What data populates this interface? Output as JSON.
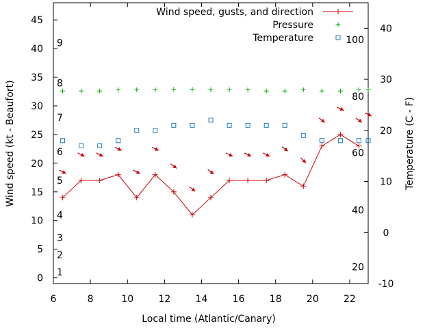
{
  "chart_data": {
    "type": "line",
    "xlabel": "Local time (Atlantic/Canary)",
    "ylabel": "Wind speed (kt - Beaufort)",
    "y2label": "Temperature (C - F)",
    "xlim": [
      6,
      23
    ],
    "ylim": [
      -1,
      48
    ],
    "y2lim": [
      -10,
      45
    ],
    "x_ticks": [
      6,
      8,
      10,
      12,
      14,
      16,
      18,
      20,
      22
    ],
    "y_ticks": [
      0,
      5,
      10,
      15,
      20,
      25,
      30,
      35,
      40,
      45
    ],
    "y2_ticks": [
      -10,
      0,
      10,
      20,
      30,
      40
    ],
    "beaufort_labels": [
      {
        "label": "1",
        "kt": 1
      },
      {
        "label": "2",
        "kt": 4
      },
      {
        "label": "3",
        "kt": 7
      },
      {
        "label": "4",
        "kt": 11
      },
      {
        "label": "5",
        "kt": 17
      },
      {
        "label": "6",
        "kt": 22
      },
      {
        "label": "7",
        "kt": 28
      },
      {
        "label": "8",
        "kt": 34
      },
      {
        "label": "9",
        "kt": 41
      }
    ],
    "fahrenheit_labels": [
      {
        "label": "20",
        "c": -6.7
      },
      {
        "label": "40",
        "c": 4.4
      },
      {
        "label": "60",
        "c": 15.6
      },
      {
        "label": "80",
        "c": 26.7
      },
      {
        "label": "100",
        "c": 37.8
      }
    ],
    "legend_position": "top-right",
    "series": [
      {
        "name": "Wind speed, gusts, and direction",
        "color": "#cc0000",
        "x": [
          6.5,
          7.5,
          8.5,
          9.5,
          10.5,
          11.5,
          12.5,
          13.5,
          14.5,
          15.5,
          16.5,
          17.5,
          18.5,
          19.5,
          20.5,
          21.5,
          22.5
        ],
        "y": [
          14,
          17,
          17,
          18,
          14,
          18,
          15,
          11,
          14,
          17,
          17,
          17,
          18,
          16,
          23,
          25,
          23
        ]
      },
      {
        "name": "Pressure",
        "color": "#00aa00",
        "x": [
          6.5,
          7.5,
          8.5,
          9.5,
          10.5,
          11.5,
          12.5,
          13.5,
          14.5,
          15.5,
          16.5,
          17.5,
          18.5,
          19.5,
          20.5,
          21.5,
          22.5,
          23
        ],
        "y": [
          32.6,
          32.6,
          32.6,
          32.8,
          32.8,
          32.8,
          32.9,
          32.9,
          32.8,
          32.8,
          32.8,
          32.6,
          32.6,
          32.8,
          32.6,
          32.6,
          32.8,
          32.8
        ]
      },
      {
        "name": "Temperature",
        "color": "#1a7abf",
        "axis": "y2",
        "x": [
          6.5,
          7.5,
          8.5,
          9.5,
          10.5,
          11.5,
          12.5,
          13.5,
          14.5,
          15.5,
          16.5,
          17.5,
          18.5,
          19.5,
          20.5,
          21.5,
          22.5,
          23
        ],
        "y": [
          18,
          17,
          17,
          18,
          20,
          20,
          21,
          21,
          22,
          21,
          21,
          21,
          21,
          19,
          18,
          18,
          18,
          18
        ]
      }
    ],
    "direction_arrows": [
      {
        "x": 6.5,
        "y": 18.5,
        "dx": 0.9,
        "dy": -0.45
      },
      {
        "x": 7.5,
        "y": 21.5,
        "dx": 0.9,
        "dy": -0.45
      },
      {
        "x": 8.5,
        "y": 21.5,
        "dx": 0.9,
        "dy": -0.45
      },
      {
        "x": 9.5,
        "y": 22.5,
        "dx": 0.9,
        "dy": -0.45
      },
      {
        "x": 10.5,
        "y": 18.5,
        "dx": 0.9,
        "dy": -0.45
      },
      {
        "x": 11.5,
        "y": 22.5,
        "dx": 0.9,
        "dy": -0.45
      },
      {
        "x": 12.5,
        "y": 19.5,
        "dx": 0.8,
        "dy": -0.6
      },
      {
        "x": 13.5,
        "y": 15.5,
        "dx": 0.8,
        "dy": -0.6
      },
      {
        "x": 14.5,
        "y": 18.5,
        "dx": 0.8,
        "dy": -0.6
      },
      {
        "x": 15.5,
        "y": 21.5,
        "dx": 0.9,
        "dy": -0.45
      },
      {
        "x": 16.5,
        "y": 21.5,
        "dx": 0.9,
        "dy": -0.45
      },
      {
        "x": 17.5,
        "y": 21.5,
        "dx": 0.9,
        "dy": -0.45
      },
      {
        "x": 18.5,
        "y": 22.5,
        "dx": 0.8,
        "dy": -0.6
      },
      {
        "x": 19.5,
        "y": 20.5,
        "dx": 0.7,
        "dy": -0.7
      },
      {
        "x": 20.5,
        "y": 27.5,
        "dx": 0.8,
        "dy": -0.6
      },
      {
        "x": 21.5,
        "y": 29.5,
        "dx": 0.9,
        "dy": -0.45
      },
      {
        "x": 22.5,
        "y": 27.5,
        "dx": 0.8,
        "dy": -0.6
      },
      {
        "x": 23,
        "y": 28.5,
        "dx": 0.9,
        "dy": -0.45
      }
    ]
  }
}
